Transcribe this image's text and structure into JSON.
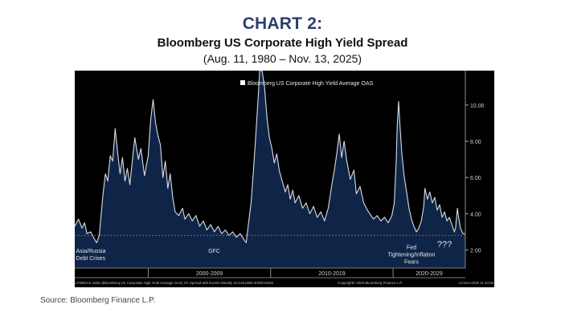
{
  "header": {
    "label": "CHART 2:",
    "title": "Bloomberg US Corporate High Yield Spread",
    "subtitle": "(Aug. 11, 1980 – Nov. 13, 2025)"
  },
  "chart_data": {
    "type": "area",
    "legend": "Bloomberg US Corporate High Yield Average OAS",
    "legend_position": "top-center",
    "y_axis_position": "right",
    "ylim": [
      1.0,
      11.9
    ],
    "yticks": [
      2.0,
      4.0,
      6.0,
      8.0,
      10.0
    ],
    "ytick_labels": [
      "2.00",
      "4.00",
      "6.00",
      "8.00",
      "10.00"
    ],
    "xlim": [
      1994.0,
      2025.9
    ],
    "reference_line": 2.8,
    "background_color": "#000000",
    "fill_color": "#0f2548",
    "line_color": "#d8dce4",
    "reference_color": "#d23c4a",
    "decades": [
      {
        "label": "2000-2009",
        "start": 2000,
        "end": 2010
      },
      {
        "label": "2010-2019",
        "start": 2010,
        "end": 2020
      },
      {
        "label": "2020-2029",
        "start": 2020,
        "end": 2026
      }
    ],
    "annotations": [
      {
        "lines": [
          "Asia/Russia",
          "Debt Crises"
        ],
        "x": 1994.1,
        "y": 1.85,
        "anchor": "start"
      },
      {
        "lines": [
          "GFC"
        ],
        "x": 2004.9,
        "y": 1.85,
        "anchor": "start"
      },
      {
        "lines": [
          "Fed",
          "Tightening/Inflation",
          "Fears"
        ],
        "x": 2021.5,
        "y": 2.05,
        "anchor": "middle"
      },
      {
        "lines": [
          "???"
        ],
        "x": 2024.2,
        "y": 2.15,
        "anchor": "middle",
        "size": 11
      }
    ],
    "footer_left": "LF98OAS Index (Bloomberg US Corporate High Yield Average OAS) HY Spread with Events Weekly 11AUG1980-30NOV2025",
    "footer_mid": "Copyright© 2025 Bloomberg Finance L.P.",
    "footer_right": "13-Nov-2025 11:34:36",
    "series": [
      {
        "name": "Bloomberg US Corporate High Yield Average OAS",
        "points": [
          [
            1994.0,
            3.3
          ],
          [
            1994.3,
            3.7
          ],
          [
            1994.6,
            3.2
          ],
          [
            1994.8,
            3.5
          ],
          [
            1995.0,
            2.9
          ],
          [
            1995.3,
            3.0
          ],
          [
            1995.6,
            2.6
          ],
          [
            1995.8,
            2.4
          ],
          [
            1996.0,
            2.8
          ],
          [
            1996.3,
            5.0
          ],
          [
            1996.5,
            6.2
          ],
          [
            1996.7,
            5.8
          ],
          [
            1996.9,
            7.2
          ],
          [
            1997.1,
            6.9
          ],
          [
            1997.3,
            8.7
          ],
          [
            1997.5,
            7.4
          ],
          [
            1997.7,
            6.2
          ],
          [
            1997.9,
            7.1
          ],
          [
            1998.1,
            5.8
          ],
          [
            1998.3,
            6.5
          ],
          [
            1998.5,
            5.6
          ],
          [
            1998.7,
            6.9
          ],
          [
            1998.9,
            8.2
          ],
          [
            1999.2,
            7.0
          ],
          [
            1999.4,
            7.6
          ],
          [
            1999.7,
            6.1
          ],
          [
            2000.0,
            7.2
          ],
          [
            2000.2,
            9.2
          ],
          [
            2000.4,
            10.3
          ],
          [
            2000.6,
            9.0
          ],
          [
            2000.8,
            8.3
          ],
          [
            2001.0,
            7.8
          ],
          [
            2001.2,
            6.0
          ],
          [
            2001.4,
            6.9
          ],
          [
            2001.6,
            5.4
          ],
          [
            2001.8,
            6.2
          ],
          [
            2002.0,
            4.9
          ],
          [
            2002.2,
            4.1
          ],
          [
            2002.5,
            3.9
          ],
          [
            2002.8,
            4.3
          ],
          [
            2003.0,
            3.7
          ],
          [
            2003.3,
            4.0
          ],
          [
            2003.6,
            3.6
          ],
          [
            2003.9,
            3.9
          ],
          [
            2004.2,
            3.3
          ],
          [
            2004.5,
            3.6
          ],
          [
            2004.8,
            3.1
          ],
          [
            2005.1,
            3.4
          ],
          [
            2005.4,
            3.0
          ],
          [
            2005.7,
            3.3
          ],
          [
            2006.0,
            2.9
          ],
          [
            2006.3,
            3.1
          ],
          [
            2006.6,
            2.8
          ],
          [
            2006.9,
            3.0
          ],
          [
            2007.2,
            2.7
          ],
          [
            2007.5,
            2.9
          ],
          [
            2007.8,
            2.6
          ],
          [
            2008.0,
            2.4
          ],
          [
            2008.2,
            3.5
          ],
          [
            2008.4,
            4.6
          ],
          [
            2008.6,
            6.4
          ],
          [
            2008.8,
            8.5
          ],
          [
            2009.0,
            10.6
          ],
          [
            2009.1,
            11.9
          ],
          [
            2009.3,
            11.9
          ],
          [
            2009.5,
            11.0
          ],
          [
            2009.7,
            9.3
          ],
          [
            2009.9,
            8.2
          ],
          [
            2010.1,
            7.6
          ],
          [
            2010.3,
            6.8
          ],
          [
            2010.5,
            7.3
          ],
          [
            2010.7,
            6.4
          ],
          [
            2010.9,
            5.9
          ],
          [
            2011.2,
            5.2
          ],
          [
            2011.4,
            5.6
          ],
          [
            2011.6,
            4.8
          ],
          [
            2011.8,
            5.3
          ],
          [
            2012.0,
            4.6
          ],
          [
            2012.3,
            5.0
          ],
          [
            2012.6,
            4.3
          ],
          [
            2012.9,
            4.6
          ],
          [
            2013.2,
            4.0
          ],
          [
            2013.5,
            4.4
          ],
          [
            2013.8,
            3.8
          ],
          [
            2014.1,
            4.1
          ],
          [
            2014.4,
            3.6
          ],
          [
            2014.7,
            4.3
          ],
          [
            2015.0,
            5.6
          ],
          [
            2015.2,
            6.4
          ],
          [
            2015.4,
            7.3
          ],
          [
            2015.6,
            8.4
          ],
          [
            2015.8,
            7.1
          ],
          [
            2016.0,
            8.0
          ],
          [
            2016.2,
            7.0
          ],
          [
            2016.5,
            5.9
          ],
          [
            2016.8,
            6.4
          ],
          [
            2017.0,
            5.1
          ],
          [
            2017.3,
            5.5
          ],
          [
            2017.6,
            4.6
          ],
          [
            2017.9,
            4.2
          ],
          [
            2018.1,
            4.0
          ],
          [
            2018.4,
            3.7
          ],
          [
            2018.7,
            3.9
          ],
          [
            2019.0,
            3.6
          ],
          [
            2019.3,
            3.8
          ],
          [
            2019.6,
            3.5
          ],
          [
            2019.9,
            3.9
          ],
          [
            2020.1,
            4.6
          ],
          [
            2020.25,
            6.8
          ],
          [
            2020.35,
            9.0
          ],
          [
            2020.45,
            10.2
          ],
          [
            2020.55,
            9.0
          ],
          [
            2020.7,
            7.4
          ],
          [
            2020.9,
            6.1
          ],
          [
            2021.1,
            5.2
          ],
          [
            2021.3,
            4.3
          ],
          [
            2021.5,
            3.7
          ],
          [
            2021.7,
            3.3
          ],
          [
            2021.9,
            3.0
          ],
          [
            2022.1,
            3.2
          ],
          [
            2022.3,
            3.6
          ],
          [
            2022.5,
            4.4
          ],
          [
            2022.6,
            5.4
          ],
          [
            2022.8,
            4.8
          ],
          [
            2023.0,
            5.2
          ],
          [
            2023.2,
            4.6
          ],
          [
            2023.4,
            4.9
          ],
          [
            2023.6,
            4.2
          ],
          [
            2023.8,
            4.5
          ],
          [
            2024.0,
            3.8
          ],
          [
            2024.2,
            4.1
          ],
          [
            2024.4,
            3.6
          ],
          [
            2024.6,
            3.8
          ],
          [
            2024.8,
            3.4
          ],
          [
            2025.0,
            3.0
          ],
          [
            2025.1,
            3.2
          ],
          [
            2025.25,
            4.3
          ],
          [
            2025.35,
            3.8
          ],
          [
            2025.5,
            3.2
          ],
          [
            2025.7,
            2.9
          ],
          [
            2025.87,
            2.9
          ]
        ]
      }
    ]
  },
  "source": "Source: Bloomberg Finance L.P."
}
